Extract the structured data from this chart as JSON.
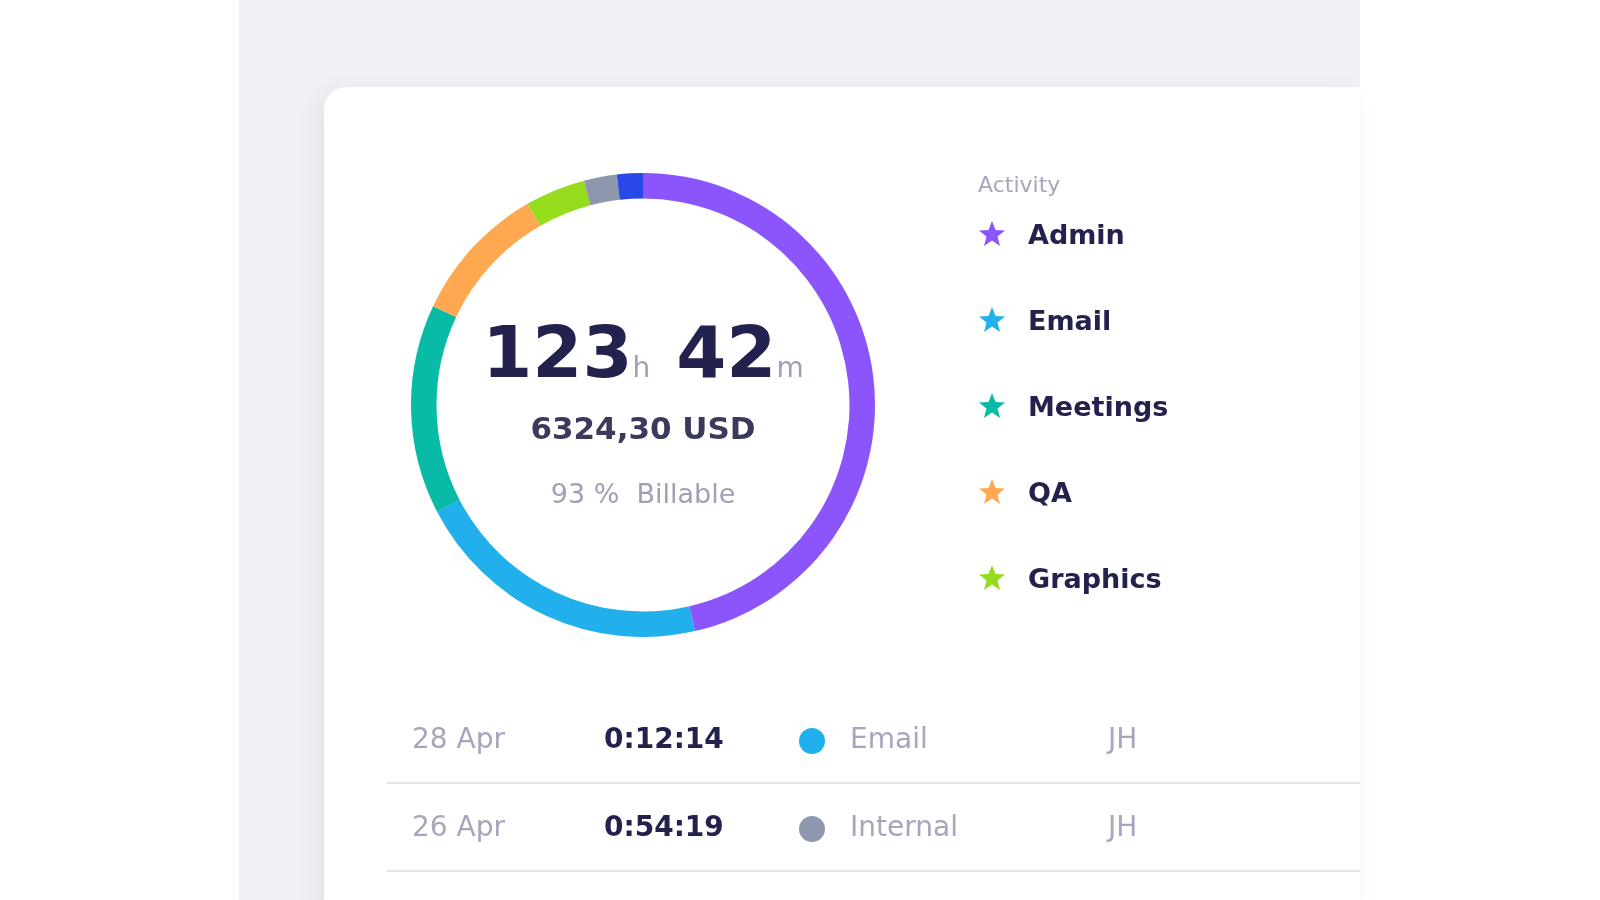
{
  "chart_data": {
    "type": "donut",
    "legend_title": "Activity",
    "categories": [
      "Admin",
      "Email",
      "Meetings",
      "QA",
      "Graphics",
      null,
      null
    ],
    "values": [
      46.4,
      21,
      14.6,
      9.7,
      4.2,
      2.3,
      1.8
    ],
    "colors": [
      "#8b55fb",
      "#22b0ec",
      "#07bba6",
      "#ffa84f",
      "#95dd1c",
      "#8e97ad",
      "#2848e8"
    ],
    "legend": "right",
    "marker": "star",
    "annotations": [
      "123h 42m",
      "6324,30 USD",
      "93 %  Billable",
      "28 Apr",
      "0:12:14",
      "Email",
      "JH",
      "26 Apr",
      "0:54:19",
      "Internal",
      "JH"
    ]
  }
}
